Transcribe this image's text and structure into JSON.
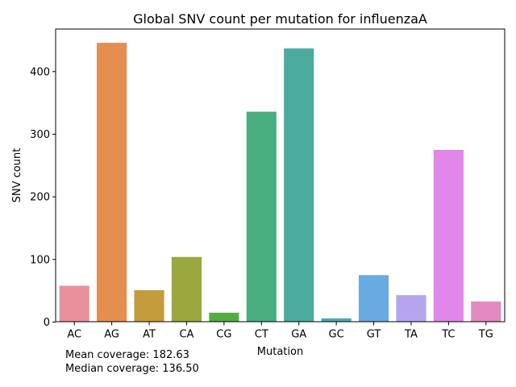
{
  "chart_data": {
    "type": "bar",
    "title": "Global SNV count per mutation for influenzaA",
    "xlabel": "Mutation",
    "ylabel": "SNV count",
    "categories": [
      "AC",
      "AG",
      "AT",
      "CA",
      "CG",
      "CT",
      "GA",
      "GC",
      "GT",
      "TA",
      "TC",
      "TG"
    ],
    "values": [
      58,
      446,
      51,
      104,
      15,
      336,
      437,
      6,
      75,
      43,
      275,
      33
    ],
    "colors": [
      "#e8919d",
      "#e58e4f",
      "#c39c3b",
      "#9aa83e",
      "#52ac3e",
      "#49ae80",
      "#4aab9e",
      "#4ba8b5",
      "#68aae2",
      "#b5a5ef",
      "#e187e9",
      "#e58ac0"
    ],
    "yticks": [
      0,
      100,
      200,
      300,
      400
    ],
    "ylim": [
      0,
      468
    ],
    "grid": false,
    "legend": "none"
  },
  "footnote": {
    "mean": "Mean coverage: 182.63",
    "median": "Median coverage: 136.50"
  }
}
